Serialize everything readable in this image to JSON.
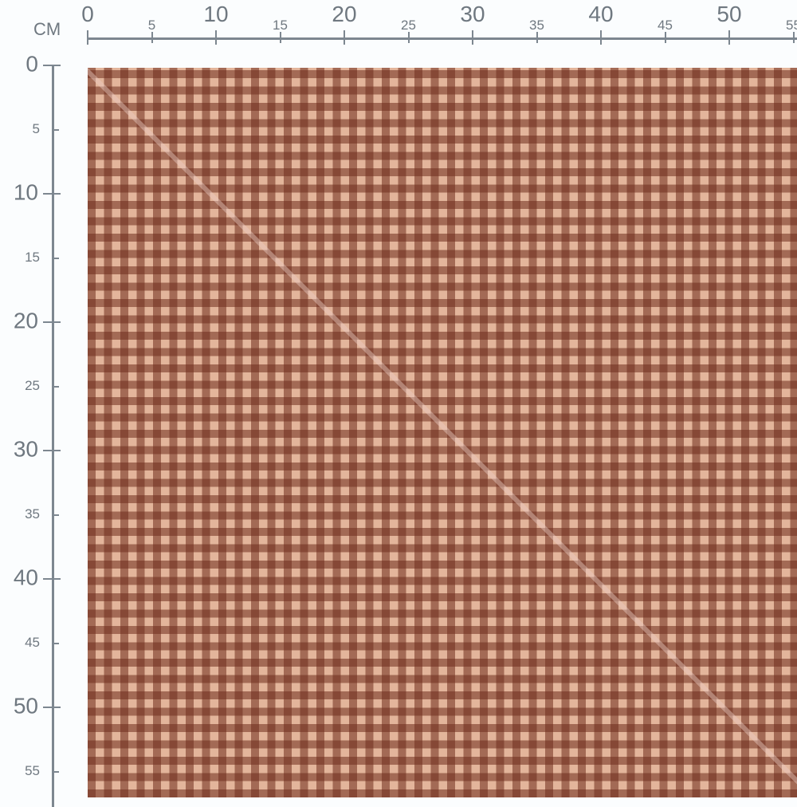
{
  "ruler": {
    "unit": "CM",
    "top_ticks": [
      "0",
      "5",
      "10",
      "15",
      "20",
      "25",
      "30",
      "35",
      "40",
      "45",
      "50",
      "55"
    ],
    "left_ticks": [
      "0",
      "5",
      "10",
      "15",
      "20",
      "25",
      "30",
      "35",
      "40",
      "45",
      "50",
      "55"
    ]
  },
  "swatch": {
    "pattern": "gingham",
    "colors": {
      "dark": "#6e3324",
      "mid": "#a8644e",
      "light": "#e6b9a0"
    },
    "diagonal_line": true
  },
  "colors": {
    "ruler": "#7d8790",
    "background": "#fbfdfe"
  }
}
